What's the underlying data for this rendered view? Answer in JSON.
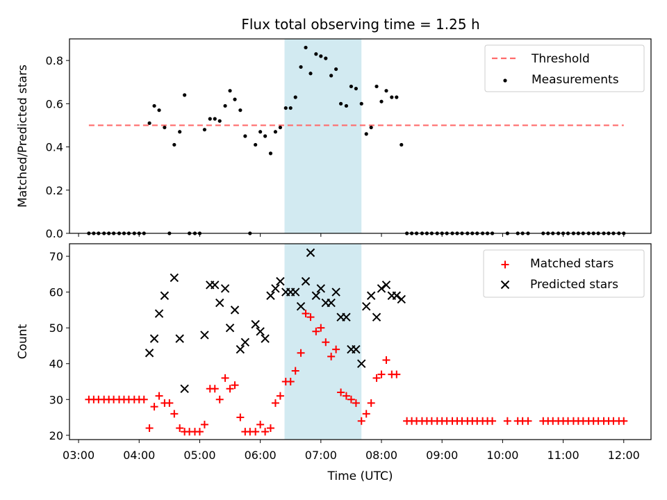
{
  "figure": {
    "title": "Flux total observing time = 1.25 h",
    "xlabel": "Time (UTC)"
  },
  "chart_data": [
    {
      "type": "scatter",
      "title": "Flux total observing time = 1.25 h",
      "ylabel": "Matched/Predicted stars",
      "x_unit": "hours UTC",
      "xlim": [
        2.85,
        12.45
      ],
      "ylim": [
        0,
        0.9
      ],
      "xticks": [
        "03:00",
        "04:00",
        "05:00",
        "06:00",
        "07:00",
        "08:00",
        "09:00",
        "10:00",
        "11:00",
        "12:00"
      ],
      "xtick_values": [
        3,
        4,
        5,
        6,
        7,
        8,
        9,
        10,
        11,
        12
      ],
      "yticks": [
        "0.0",
        "0.2",
        "0.4",
        "0.6",
        "0.8"
      ],
      "ytick_values": [
        0,
        0.2,
        0.4,
        0.6,
        0.8
      ],
      "shaded_span": {
        "x": [
          6.4,
          7.67
        ],
        "color": "#add8e6"
      },
      "legend_position": "upper right",
      "threshold": {
        "name": "Threshold",
        "x": [
          3.17,
          12.0
        ],
        "y": 0.5,
        "color": "#ff6b6b",
        "style": "dashed"
      },
      "series": [
        {
          "name": "Measurements",
          "color": "#000000",
          "marker": "dot",
          "x": [
            3.17,
            3.25,
            3.33,
            3.42,
            3.5,
            3.58,
            3.67,
            3.75,
            3.83,
            3.92,
            4.0,
            4.08,
            4.17,
            4.25,
            4.33,
            4.42,
            4.5,
            4.58,
            4.67,
            4.75,
            4.83,
            4.92,
            5.0,
            5.08,
            5.17,
            5.25,
            5.33,
            5.42,
            5.5,
            5.58,
            5.67,
            5.75,
            5.83,
            5.92,
            6.0,
            6.08,
            6.17,
            6.25,
            6.33,
            6.42,
            6.5,
            6.58,
            6.67,
            6.75,
            6.83,
            6.92,
            7.0,
            7.08,
            7.17,
            7.25,
            7.33,
            7.42,
            7.5,
            7.58,
            7.67,
            7.75,
            7.83,
            7.92,
            8.0,
            8.08,
            8.17,
            8.25,
            8.33,
            8.42,
            8.5,
            8.58,
            8.67,
            8.75,
            8.83,
            8.92,
            9.0,
            9.08,
            9.17,
            9.25,
            9.33,
            9.42,
            9.5,
            9.58,
            9.67,
            9.75,
            9.83,
            10.08,
            10.25,
            10.33,
            10.42,
            10.67,
            10.75,
            10.83,
            10.92,
            11.0,
            11.08,
            11.17,
            11.25,
            11.33,
            11.42,
            11.5,
            11.58,
            11.67,
            11.75,
            11.83,
            11.92,
            12.0
          ],
          "y": [
            0,
            0,
            0,
            0,
            0,
            0,
            0,
            0,
            0,
            0,
            0,
            0,
            0.51,
            0.59,
            0.57,
            0.49,
            0,
            0.41,
            0.47,
            0.64,
            0,
            0,
            0,
            0.48,
            0.53,
            0.53,
            0.52,
            0.59,
            0.66,
            0.62,
            0.57,
            0.45,
            0,
            0.41,
            0.47,
            0.45,
            0.37,
            0.47,
            0.49,
            0.58,
            0.58,
            0.63,
            0.77,
            0.86,
            0.74,
            0.83,
            0.82,
            0.81,
            0.73,
            0.76,
            0.6,
            0.59,
            0.68,
            0.67,
            0.6,
            0.46,
            0.49,
            0.68,
            0.61,
            0.66,
            0.63,
            0.63,
            0.41,
            0,
            0,
            0,
            0,
            0,
            0,
            0,
            0,
            0,
            0,
            0,
            0,
            0,
            0,
            0,
            0,
            0,
            0,
            0,
            0,
            0,
            0,
            0,
            0,
            0,
            0,
            0,
            0,
            0,
            0,
            0,
            0,
            0,
            0,
            0,
            0,
            0,
            0,
            0
          ]
        }
      ]
    },
    {
      "type": "scatter",
      "ylabel": "Count",
      "xlabel": "Time (UTC)",
      "x_unit": "hours UTC",
      "xlim": [
        2.85,
        12.45
      ],
      "ylim": [
        18.8,
        73.5
      ],
      "xticks": [
        "03:00",
        "04:00",
        "05:00",
        "06:00",
        "07:00",
        "08:00",
        "09:00",
        "10:00",
        "11:00",
        "12:00"
      ],
      "xtick_values": [
        3,
        4,
        5,
        6,
        7,
        8,
        9,
        10,
        11,
        12
      ],
      "yticks": [
        "20",
        "30",
        "40",
        "50",
        "60",
        "70"
      ],
      "ytick_values": [
        20,
        30,
        40,
        50,
        60,
        70
      ],
      "shaded_span": {
        "x": [
          6.4,
          7.67
        ],
        "color": "#add8e6"
      },
      "legend_position": "upper right",
      "series": [
        {
          "name": "Matched stars",
          "color": "#ff0000",
          "marker": "plus",
          "x": [
            3.17,
            3.25,
            3.33,
            3.42,
            3.5,
            3.58,
            3.67,
            3.75,
            3.83,
            3.92,
            4.0,
            4.08,
            4.17,
            4.25,
            4.33,
            4.42,
            4.5,
            4.58,
            4.67,
            4.75,
            4.83,
            4.92,
            5.0,
            5.08,
            5.17,
            5.25,
            5.33,
            5.42,
            5.5,
            5.58,
            5.67,
            5.75,
            5.83,
            5.92,
            6.0,
            6.08,
            6.17,
            6.25,
            6.33,
            6.42,
            6.5,
            6.58,
            6.67,
            6.75,
            6.83,
            6.92,
            7.0,
            7.08,
            7.17,
            7.25,
            7.33,
            7.42,
            7.5,
            7.58,
            7.67,
            7.75,
            7.83,
            7.92,
            8.0,
            8.08,
            8.17,
            8.25,
            8.42,
            8.5,
            8.58,
            8.67,
            8.75,
            8.83,
            8.92,
            9.0,
            9.08,
            9.17,
            9.25,
            9.33,
            9.42,
            9.5,
            9.58,
            9.67,
            9.75,
            9.83,
            10.08,
            10.25,
            10.33,
            10.42,
            10.67,
            10.75,
            10.83,
            10.92,
            11.0,
            11.08,
            11.17,
            11.25,
            11.33,
            11.42,
            11.5,
            11.58,
            11.67,
            11.75,
            11.83,
            11.92,
            12.0
          ],
          "y": [
            30,
            30,
            30,
            30,
            30,
            30,
            30,
            30,
            30,
            30,
            30,
            30,
            22,
            28,
            31,
            29,
            29,
            26,
            22,
            21,
            21,
            21,
            21,
            23,
            33,
            33,
            30,
            36,
            33,
            34,
            25,
            21,
            21,
            21,
            23,
            21,
            22,
            29,
            31,
            35,
            35,
            38,
            43,
            54,
            53,
            49,
            50,
            46,
            42,
            44,
            32,
            31,
            30,
            29,
            24,
            26,
            29,
            36,
            37,
            41,
            37,
            37,
            24,
            24,
            24,
            24,
            24,
            24,
            24,
            24,
            24,
            24,
            24,
            24,
            24,
            24,
            24,
            24,
            24,
            24,
            24,
            24,
            24,
            24,
            24,
            24,
            24,
            24,
            24,
            24,
            24,
            24,
            24,
            24,
            24,
            24,
            24,
            24,
            24,
            24,
            24
          ]
        },
        {
          "name": "Predicted stars",
          "color": "#000000",
          "marker": "cross",
          "x": [
            4.17,
            4.25,
            4.33,
            4.42,
            4.58,
            4.67,
            4.75,
            5.08,
            5.17,
            5.25,
            5.33,
            5.42,
            5.5,
            5.58,
            5.67,
            5.75,
            5.92,
            6.0,
            6.08,
            6.17,
            6.25,
            6.33,
            6.42,
            6.5,
            6.58,
            6.67,
            6.75,
            6.83,
            6.92,
            7.0,
            7.08,
            7.17,
            7.25,
            7.33,
            7.42,
            7.5,
            7.58,
            7.67,
            7.75,
            7.83,
            7.92,
            8.0,
            8.08,
            8.17,
            8.25,
            8.33
          ],
          "y": [
            43,
            47,
            54,
            59,
            64,
            47,
            33,
            48,
            62,
            62,
            57,
            61,
            50,
            55,
            44,
            46,
            51,
            49,
            47,
            59,
            61,
            63,
            60,
            60,
            60,
            56,
            63,
            71,
            59,
            61,
            57,
            57,
            60,
            53,
            53,
            44,
            44,
            40,
            56,
            59,
            53,
            61,
            62,
            59,
            59,
            58
          ]
        }
      ]
    }
  ]
}
